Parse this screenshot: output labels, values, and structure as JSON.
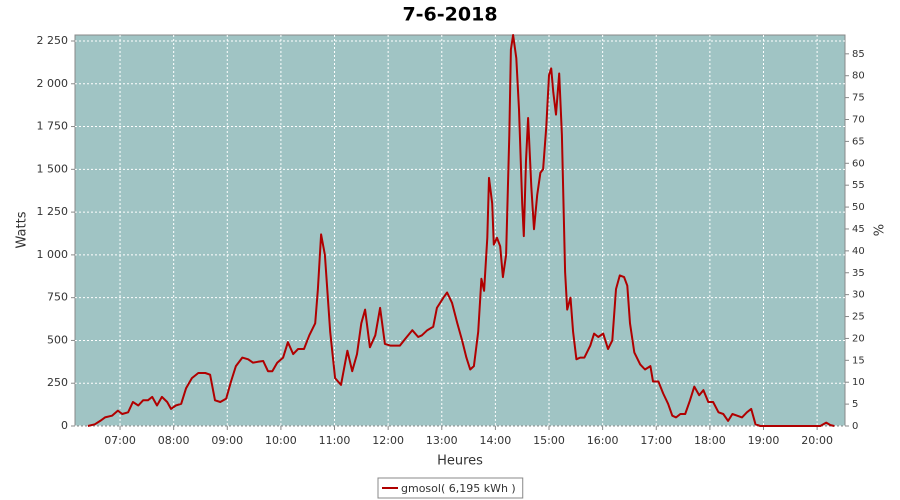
{
  "chart_data": {
    "type": "line",
    "title": "7-6-2018",
    "x_label": "Heures",
    "y_label": "Watts",
    "y2_label": "%",
    "x": [
      6.4,
      6.53,
      6.63,
      6.72,
      6.85,
      6.96,
      7.04,
      7.15,
      7.24,
      7.34,
      7.43,
      7.52,
      7.6,
      7.69,
      7.78,
      7.88,
      7.95,
      8.04,
      8.14,
      8.23,
      8.34,
      8.46,
      8.59,
      8.68,
      8.77,
      8.87,
      8.98,
      9.07,
      9.16,
      9.28,
      9.39,
      9.48,
      9.57,
      9.67,
      9.76,
      9.84,
      9.93,
      10.04,
      10.13,
      10.23,
      10.32,
      10.43,
      10.53,
      10.64,
      10.69,
      10.75,
      10.82,
      10.92,
      11.01,
      11.12,
      11.24,
      11.33,
      11.42,
      11.5,
      11.57,
      11.66,
      11.76,
      11.85,
      11.94,
      12.04,
      12.22,
      12.32,
      12.45,
      12.56,
      12.63,
      12.73,
      12.84,
      12.91,
      13.03,
      13.1,
      13.19,
      13.29,
      13.38,
      13.46,
      13.53,
      13.6,
      13.68,
      13.74,
      13.79,
      13.85,
      13.88,
      13.94,
      13.97,
      14.03,
      14.09,
      14.14,
      14.2,
      14.26,
      14.29,
      14.33,
      14.39,
      14.44,
      14.5,
      14.53,
      14.57,
      14.61,
      14.67,
      14.72,
      14.78,
      14.84,
      14.89,
      14.95,
      15.0,
      15.04,
      15.08,
      15.13,
      15.19,
      15.24,
      15.3,
      15.34,
      15.4,
      15.45,
      15.51,
      15.58,
      15.66,
      15.77,
      15.84,
      15.92,
      16.01,
      16.1,
      16.18,
      16.25,
      16.32,
      16.4,
      16.46,
      16.51,
      16.59,
      16.7,
      16.79,
      16.89,
      16.94,
      17.04,
      17.13,
      17.22,
      17.3,
      17.37,
      17.45,
      17.54,
      17.63,
      17.71,
      17.8,
      17.88,
      17.97,
      18.06,
      18.16,
      18.25,
      18.34,
      18.42,
      18.51,
      18.6,
      18.69,
      18.77,
      18.85,
      18.94,
      19.69,
      20.06,
      20.17,
      20.25,
      20.32
    ],
    "series": [
      {
        "name": "gmosol( 6,195 kWh )",
        "color": "#b00000",
        "values": [
          0,
          10,
          30,
          50,
          60,
          90,
          70,
          80,
          140,
          120,
          150,
          150,
          170,
          120,
          170,
          140,
          100,
          120,
          130,
          220,
          280,
          310,
          310,
          300,
          150,
          140,
          160,
          260,
          350,
          400,
          390,
          370,
          375,
          380,
          320,
          320,
          370,
          400,
          490,
          420,
          450,
          450,
          530,
          600,
          800,
          1120,
          1000,
          550,
          280,
          240,
          440,
          320,
          420,
          600,
          680,
          460,
          530,
          690,
          480,
          470,
          470,
          510,
          560,
          520,
          530,
          560,
          580,
          690,
          750,
          780,
          720,
          600,
          500,
          400,
          330,
          350,
          550,
          860,
          790,
          1100,
          1450,
          1300,
          1060,
          1100,
          1050,
          870,
          1000,
          1700,
          2200,
          2285,
          2150,
          1850,
          1300,
          1110,
          1550,
          1800,
          1400,
          1150,
          1350,
          1480,
          1500,
          1750,
          2050,
          2090,
          1950,
          1820,
          2060,
          1700,
          900,
          680,
          750,
          550,
          390,
          400,
          400,
          470,
          540,
          520,
          540,
          450,
          500,
          800,
          880,
          870,
          820,
          600,
          430,
          360,
          330,
          350,
          260,
          260,
          190,
          130,
          60,
          50,
          70,
          70,
          150,
          230,
          180,
          210,
          140,
          140,
          80,
          70,
          30,
          70,
          60,
          50,
          80,
          100,
          10,
          0,
          0,
          0,
          20,
          5,
          0
        ]
      }
    ],
    "xlim": [
      6.16,
      20.52
    ],
    "xticks": [
      {
        "value": 7,
        "label": "07:00"
      },
      {
        "value": 8,
        "label": "08:00"
      },
      {
        "value": 9,
        "label": "09:00"
      },
      {
        "value": 10,
        "label": "10:00"
      },
      {
        "value": 11,
        "label": "11:00"
      },
      {
        "value": 12,
        "label": "12:00"
      },
      {
        "value": 13,
        "label": "13:00"
      },
      {
        "value": 14,
        "label": "14:00"
      },
      {
        "value": 15,
        "label": "15:00"
      },
      {
        "value": 16,
        "label": "16:00"
      },
      {
        "value": 17,
        "label": "17:00"
      },
      {
        "value": 18,
        "label": "18:00"
      },
      {
        "value": 19,
        "label": "19:00"
      },
      {
        "value": 20,
        "label": "20:00"
      }
    ],
    "ylim": [
      0,
      2285
    ],
    "yticks": [
      0,
      250,
      500,
      750,
      {
        "value": 1000,
        "label": "1 000"
      },
      {
        "value": 1250,
        "label": "1 250"
      },
      {
        "value": 1500,
        "label": "1 500"
      },
      {
        "value": 1750,
        "label": "1 750"
      },
      {
        "value": 2000,
        "label": "2 000"
      },
      {
        "value": 2250,
        "label": "2 250"
      }
    ],
    "y2lim": [
      0,
      89.3
    ],
    "y2ticks": [
      0,
      5,
      10,
      15,
      20,
      25,
      30,
      35,
      40,
      45,
      50,
      55,
      60,
      65,
      70,
      75,
      80,
      85
    ],
    "grid": true,
    "plot_background": "#a0c4c4",
    "legend": "bottom"
  }
}
